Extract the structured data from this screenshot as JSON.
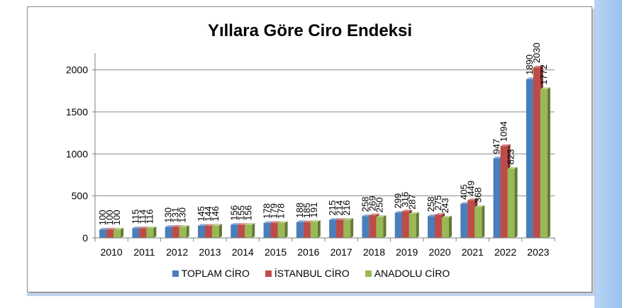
{
  "chart_data": {
    "type": "bar",
    "title": "Yıllara Göre Ciro Endeksi",
    "categories": [
      "2010",
      "2011",
      "2012",
      "2013",
      "2014",
      "2015",
      "2016",
      "2017",
      "2018",
      "2019",
      "2020",
      "2021",
      "2022",
      "2023"
    ],
    "series": [
      {
        "name": "TOPLAM CİRO",
        "color": "#4a7ebb",
        "values": [
          100,
          115,
          130,
          145,
          156,
          178,
          188,
          215,
          258,
          299,
          258,
          405,
          947,
          1890
        ]
      },
      {
        "name": "İSTANBUL CİRO",
        "color": "#be4b48",
        "values": [
          100,
          114,
          131,
          144,
          155,
          179,
          185,
          214,
          269,
          316,
          275,
          449,
          1094,
          2030
        ]
      },
      {
        "name": "ANADOLU CİRO",
        "color": "#98b954",
        "values": [
          100,
          116,
          130,
          146,
          156,
          178,
          191,
          216,
          250,
          287,
          243,
          368,
          823,
          1772
        ]
      }
    ],
    "yticks": [
      0,
      500,
      1000,
      1500,
      2000
    ],
    "ylim": [
      0,
      2200
    ],
    "grid": true,
    "legend_position": "bottom"
  }
}
